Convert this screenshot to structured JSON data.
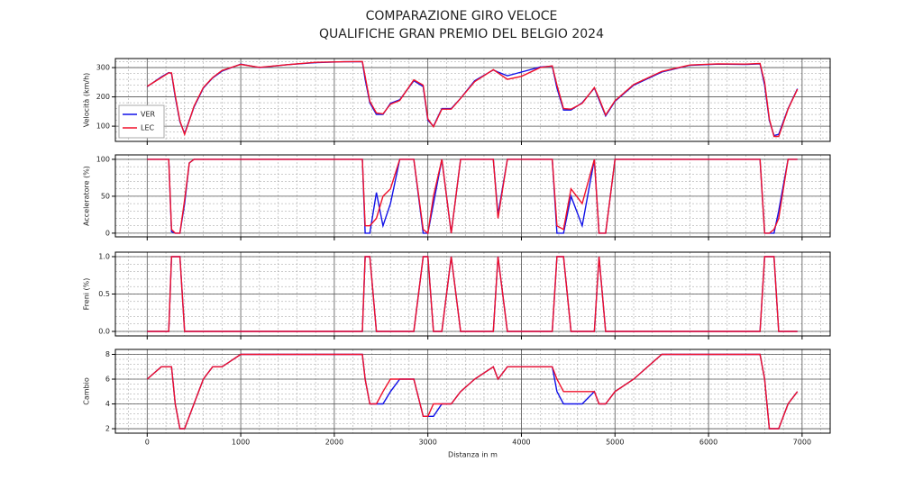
{
  "title": "COMPARAZIONE GIRO VELOCE",
  "subtitle": "QUALIFICHE GRAN PREMIO DEL BELGIO 2024",
  "chart_data": [
    {
      "type": "line",
      "ylabel": "Velocità (km/h)",
      "legend": "lower left",
      "grid": true,
      "xlim": [
        -340,
        7300
      ],
      "xticks": [
        0,
        1000,
        2000,
        3000,
        4000,
        5000,
        6000,
        7000
      ],
      "ylim": [
        48,
        331
      ],
      "yticks": [
        100,
        200,
        300
      ],
      "x": [
        0,
        150,
        230,
        260,
        300,
        350,
        400,
        450,
        500,
        600,
        700,
        800,
        1000,
        1200,
        1500,
        1800,
        2100,
        2300,
        2330,
        2380,
        2450,
        2520,
        2600,
        2700,
        2850,
        2950,
        3000,
        3060,
        3150,
        3250,
        3350,
        3500,
        3700,
        3750,
        3850,
        4000,
        4200,
        4330,
        4380,
        4450,
        4530,
        4650,
        4780,
        4830,
        4900,
        5000,
        5200,
        5500,
        5800,
        6100,
        6400,
        6550,
        6600,
        6650,
        6700,
        6750,
        6850,
        6950
      ],
      "series": [
        {
          "name": "VER",
          "color": "#1010e8",
          "values": [
            235,
            268,
            283,
            280,
            200,
            115,
            75,
            120,
            165,
            230,
            265,
            288,
            312,
            300,
            310,
            317,
            320,
            320,
            260,
            180,
            140,
            140,
            178,
            190,
            255,
            235,
            120,
            100,
            160,
            160,
            195,
            255,
            292,
            285,
            272,
            285,
            302,
            305,
            230,
            155,
            155,
            180,
            230,
            190,
            135,
            185,
            240,
            285,
            308,
            312,
            311,
            313,
            240,
            120,
            68,
            72,
            160,
            228
          ]
        },
        {
          "name": "LEC",
          "color": "#f0102a",
          "values": [
            236,
            266,
            282,
            282,
            205,
            118,
            72,
            118,
            168,
            232,
            266,
            290,
            311,
            301,
            310,
            318,
            320,
            321,
            270,
            185,
            145,
            142,
            175,
            188,
            258,
            240,
            125,
            98,
            158,
            158,
            195,
            252,
            293,
            282,
            260,
            270,
            300,
            306,
            240,
            160,
            158,
            178,
            232,
            195,
            138,
            187,
            242,
            287,
            309,
            313,
            312,
            314,
            250,
            125,
            65,
            65,
            158,
            226
          ]
        }
      ]
    },
    {
      "type": "line",
      "ylabel": "Acceleratore (%)",
      "grid": true,
      "xlim": [
        -340,
        7300
      ],
      "xticks": [
        0,
        1000,
        2000,
        3000,
        4000,
        5000,
        6000,
        7000
      ],
      "ylim": [
        -5,
        106
      ],
      "yticks": [
        0,
        50,
        100
      ],
      "x": [
        0,
        150,
        230,
        260,
        300,
        350,
        400,
        450,
        500,
        600,
        700,
        800,
        1000,
        1200,
        1500,
        1800,
        2100,
        2300,
        2330,
        2380,
        2450,
        2520,
        2600,
        2700,
        2850,
        2950,
        3000,
        3060,
        3150,
        3250,
        3350,
        3500,
        3700,
        3750,
        3850,
        4000,
        4200,
        4330,
        4380,
        4450,
        4530,
        4650,
        4780,
        4830,
        4900,
        5000,
        5200,
        5500,
        5800,
        6100,
        6400,
        6550,
        6600,
        6650,
        6700,
        6750,
        6850,
        6950
      ],
      "series": [
        {
          "color": "#1010e8",
          "values": [
            100,
            100,
            100,
            2,
            0,
            0,
            40,
            95,
            100,
            100,
            100,
            100,
            100,
            100,
            100,
            100,
            100,
            100,
            0,
            0,
            55,
            10,
            40,
            100,
            100,
            0,
            0,
            40,
            100,
            0,
            100,
            100,
            100,
            25,
            100,
            100,
            100,
            100,
            0,
            0,
            50,
            10,
            100,
            0,
            0,
            100,
            100,
            100,
            100,
            100,
            100,
            100,
            0,
            0,
            0,
            30,
            100,
            100
          ]
        },
        {
          "color": "#f0102a",
          "values": [
            100,
            100,
            100,
            5,
            0,
            0,
            45,
            95,
            100,
            100,
            100,
            100,
            100,
            100,
            100,
            100,
            100,
            100,
            10,
            10,
            20,
            50,
            60,
            100,
            100,
            5,
            0,
            50,
            100,
            0,
            100,
            100,
            100,
            20,
            100,
            100,
            100,
            100,
            10,
            5,
            60,
            40,
            100,
            0,
            0,
            100,
            100,
            100,
            100,
            100,
            100,
            100,
            0,
            0,
            5,
            20,
            100,
            100
          ]
        }
      ]
    },
    {
      "type": "line",
      "ylabel": "Freni (%)",
      "grid": true,
      "xlim": [
        -340,
        7300
      ],
      "xticks": [
        0,
        1000,
        2000,
        3000,
        4000,
        5000,
        6000,
        7000
      ],
      "ylim": [
        -0.06,
        1.06
      ],
      "yticks": [
        {
          "value": 0,
          "label": "0.0"
        },
        {
          "value": 0.5,
          "label": "0.5"
        },
        {
          "value": 1,
          "label": "1.0"
        }
      ],
      "x": [
        0,
        150,
        230,
        260,
        300,
        350,
        400,
        450,
        500,
        600,
        700,
        800,
        1000,
        1200,
        1500,
        1800,
        2100,
        2300,
        2330,
        2380,
        2450,
        2520,
        2600,
        2700,
        2850,
        2950,
        3000,
        3060,
        3150,
        3250,
        3350,
        3500,
        3700,
        3750,
        3850,
        4000,
        4200,
        4330,
        4380,
        4450,
        4530,
        4650,
        4780,
        4830,
        4900,
        5000,
        5200,
        5500,
        5800,
        6100,
        6400,
        6550,
        6600,
        6650,
        6700,
        6750,
        6850,
        6950
      ],
      "series": [
        {
          "color": "#1010e8",
          "values": [
            0,
            0,
            0,
            1,
            1,
            1,
            0,
            0,
            0,
            0,
            0,
            0,
            0,
            0,
            0,
            0,
            0,
            0,
            1,
            1,
            0,
            0,
            0,
            0,
            0,
            1,
            1,
            0,
            0,
            1,
            0,
            0,
            0,
            1,
            0,
            0,
            0,
            0,
            1,
            1,
            0,
            0,
            0,
            1,
            0,
            0,
            0,
            0,
            0,
            0,
            0,
            0,
            1,
            1,
            1,
            0,
            0,
            0
          ]
        },
        {
          "color": "#f0102a",
          "values": [
            0,
            0,
            0,
            1,
            1,
            1,
            0,
            0,
            0,
            0,
            0,
            0,
            0,
            0,
            0,
            0,
            0,
            0,
            1,
            1,
            0,
            0,
            0,
            0,
            0,
            1,
            1,
            0,
            0,
            1,
            0,
            0,
            0,
            1,
            0,
            0,
            0,
            0,
            1,
            1,
            0,
            0,
            0,
            1,
            0,
            0,
            0,
            0,
            0,
            0,
            0,
            0,
            1,
            1,
            1,
            0,
            0,
            0
          ]
        }
      ]
    },
    {
      "type": "line",
      "ylabel": "Cambio",
      "xlabel": "Distanza in m",
      "xtick_labels": true,
      "grid": true,
      "xlim": [
        -340,
        7300
      ],
      "xticks": [
        0,
        1000,
        2000,
        3000,
        4000,
        5000,
        6000,
        7000
      ],
      "ylim": [
        1.64,
        8.4
      ],
      "yticks": [
        2,
        4,
        6,
        8
      ],
      "x": [
        0,
        150,
        230,
        260,
        300,
        350,
        400,
        450,
        500,
        600,
        700,
        800,
        1000,
        1200,
        1500,
        1800,
        2100,
        2300,
        2330,
        2380,
        2450,
        2520,
        2600,
        2700,
        2850,
        2950,
        3000,
        3060,
        3150,
        3250,
        3350,
        3500,
        3700,
        3750,
        3850,
        4000,
        4200,
        4330,
        4380,
        4450,
        4530,
        4650,
        4780,
        4830,
        4900,
        5000,
        5200,
        5500,
        5800,
        6100,
        6400,
        6550,
        6600,
        6650,
        6700,
        6750,
        6850,
        6950
      ],
      "series": [
        {
          "color": "#1010e8",
          "values": [
            6,
            7,
            7,
            7,
            4,
            2,
            2,
            3,
            4,
            6,
            7,
            7,
            8,
            8,
            8,
            8,
            8,
            8,
            6,
            4,
            4,
            4,
            5,
            6,
            6,
            3,
            3,
            3,
            4,
            4,
            5,
            6,
            7,
            6,
            7,
            7,
            7,
            7,
            5,
            4,
            4,
            4,
            5,
            4,
            4,
            5,
            6,
            8,
            8,
            8,
            8,
            8,
            6,
            2,
            2,
            2,
            4,
            5
          ]
        },
        {
          "color": "#f0102a",
          "values": [
            6,
            7,
            7,
            7,
            4,
            2,
            2,
            3,
            4,
            6,
            7,
            7,
            8,
            8,
            8,
            8,
            8,
            8,
            6,
            4,
            4,
            5,
            6,
            6,
            6,
            3,
            3,
            4,
            4,
            4,
            5,
            6,
            7,
            6,
            7,
            7,
            7,
            7,
            6,
            5,
            5,
            5,
            5,
            4,
            4,
            5,
            6,
            8,
            8,
            8,
            8,
            8,
            6,
            2,
            2,
            2,
            4,
            5
          ]
        }
      ]
    }
  ]
}
